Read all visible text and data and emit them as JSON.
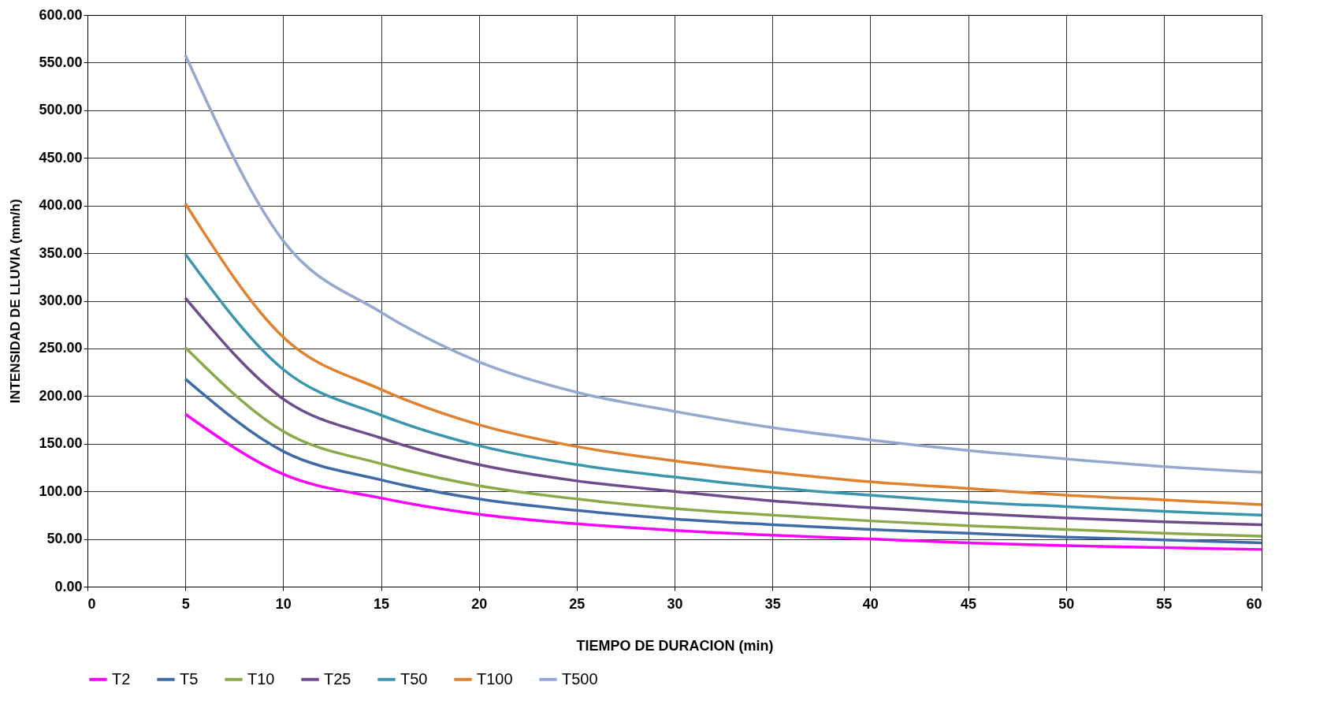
{
  "chart_data": {
    "type": "line",
    "xlabel": "TIEMPO DE DURACION  (min)",
    "ylabel": "INTENSIDAD DE LLUVIA (mm/h)",
    "x": [
      5,
      10,
      15,
      20,
      25,
      30,
      35,
      40,
      45,
      50,
      55,
      60
    ],
    "series": [
      {
        "name": "T2",
        "color": "#ff00ff",
        "values": [
          181,
          118,
          93,
          76,
          66,
          59,
          54,
          50,
          46,
          43,
          41,
          39
        ]
      },
      {
        "name": "T5",
        "color": "#3f6aa8",
        "values": [
          218,
          142,
          112,
          92,
          80,
          71,
          65,
          60,
          56,
          52,
          49,
          46
        ]
      },
      {
        "name": "T10",
        "color": "#8aaa4a",
        "values": [
          251,
          163,
          129,
          106,
          92,
          82,
          75,
          69,
          64,
          60,
          56,
          53
        ]
      },
      {
        "name": "T25",
        "color": "#6e4c8c",
        "values": [
          303,
          197,
          156,
          128,
          111,
          100,
          90,
          83,
          77,
          72,
          68,
          65
        ]
      },
      {
        "name": "T50",
        "color": "#3a95ad",
        "values": [
          349,
          228,
          180,
          148,
          128,
          115,
          104,
          96,
          89,
          84,
          79,
          75
        ]
      },
      {
        "name": "T100",
        "color": "#e0812f",
        "values": [
          402,
          262,
          207,
          170,
          147,
          132,
          120,
          110,
          103,
          96,
          91,
          86
        ]
      },
      {
        "name": "T500",
        "color": "#94a8d0",
        "values": [
          558,
          363,
          288,
          236,
          204,
          184,
          167,
          154,
          143,
          134,
          126,
          120
        ]
      }
    ],
    "xlim": [
      0,
      60
    ],
    "xticks": [
      0,
      5,
      10,
      15,
      20,
      25,
      30,
      35,
      40,
      45,
      50,
      55,
      60
    ],
    "ylim": [
      0,
      600
    ],
    "yticks": [
      {
        "value": 0,
        "label": "0.00"
      },
      {
        "value": 50,
        "label": "50.00"
      },
      {
        "value": 100,
        "label": "100.00"
      },
      {
        "value": 150,
        "label": "150.00"
      },
      {
        "value": 200,
        "label": "200.00"
      },
      {
        "value": 250,
        "label": "250.00"
      },
      {
        "value": 300,
        "label": "300.00"
      },
      {
        "value": 350,
        "label": "350.00"
      },
      {
        "value": 400,
        "label": "400.00"
      },
      {
        "value": 450,
        "label": "450.00"
      },
      {
        "value": 500,
        "label": "500.00"
      },
      {
        "value": 550,
        "label": "550.00"
      },
      {
        "value": 600,
        "label": "600.00"
      }
    ],
    "grid": true,
    "legend": "bottom",
    "marker": "none",
    "line_style": "solid"
  }
}
